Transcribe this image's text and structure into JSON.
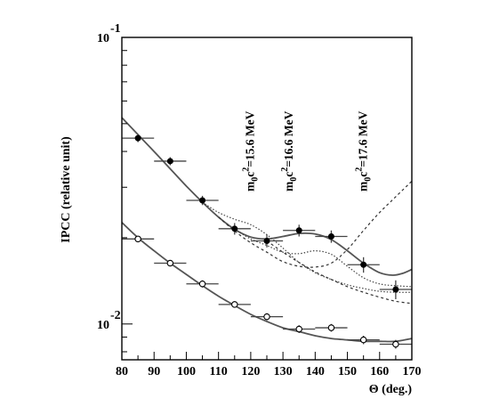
{
  "chart_data": {
    "type": "scatter",
    "xlabel": "Θ (deg.)",
    "ylabel": "IPCC (relative unit)",
    "xlim": [
      80,
      170
    ],
    "ylim": [
      0.0075,
      0.1
    ],
    "yscale": "log",
    "x_ticks": [
      80,
      90,
      100,
      110,
      120,
      130,
      140,
      150,
      160,
      170
    ],
    "y_tick_labels": [
      {
        "value": 0.1,
        "base": "10",
        "exp": "-1"
      },
      {
        "value": 0.01,
        "base": "10",
        "exp": "-2"
      }
    ],
    "annotations": [
      {
        "main": "m",
        "sub": "0",
        "rest": "c",
        "sup": "2",
        "tail": "=15.6 MeV",
        "x": 121
      },
      {
        "main": "m",
        "sub": "0",
        "rest": "c",
        "sup": "2",
        "tail": "=16.6 MeV",
        "x": 133
      },
      {
        "main": "m",
        "sub": "0",
        "rest": "c",
        "sup": "2",
        "tail": "=17.6 MeV",
        "x": 156
      }
    ],
    "series": [
      {
        "marker": "filled",
        "points": [
          {
            "x": 85,
            "y": 0.0445,
            "xerr": 5,
            "yerr": 0.0014
          },
          {
            "x": 95,
            "y": 0.037,
            "xerr": 5,
            "yerr": 0.0012
          },
          {
            "x": 105,
            "y": 0.027,
            "xerr": 5,
            "yerr": 0.001
          },
          {
            "x": 115,
            "y": 0.0215,
            "xerr": 5,
            "yerr": 0.001
          },
          {
            "x": 125,
            "y": 0.0195,
            "xerr": 5,
            "yerr": 0.001
          },
          {
            "x": 135,
            "y": 0.0212,
            "xerr": 5,
            "yerr": 0.001
          },
          {
            "x": 145,
            "y": 0.0202,
            "xerr": 5,
            "yerr": 0.001
          },
          {
            "x": 155,
            "y": 0.0161,
            "xerr": 5,
            "yerr": 0.001
          },
          {
            "x": 165,
            "y": 0.0132,
            "xerr": 5,
            "yerr": 0.001
          }
        ]
      },
      {
        "marker": "open",
        "points": [
          {
            "x": 85,
            "y": 0.0198,
            "xerr": 5,
            "yerr": 0.0005
          },
          {
            "x": 95,
            "y": 0.0163,
            "xerr": 5,
            "yerr": 0.0004
          },
          {
            "x": 105,
            "y": 0.0138,
            "xerr": 5,
            "yerr": 0.0004
          },
          {
            "x": 115,
            "y": 0.0117,
            "xerr": 5,
            "yerr": 0.0003
          },
          {
            "x": 125,
            "y": 0.0106,
            "xerr": 5,
            "yerr": 0.0003
          },
          {
            "x": 135,
            "y": 0.0096,
            "xerr": 5,
            "yerr": 0.0003
          },
          {
            "x": 145,
            "y": 0.0097,
            "xerr": 5,
            "yerr": 0.0003
          },
          {
            "x": 155,
            "y": 0.0088,
            "xerr": 5,
            "yerr": 0.0003
          },
          {
            "x": 165,
            "y": 0.0085,
            "xerr": 5,
            "yerr": 0.0003
          }
        ]
      }
    ],
    "curves": [
      {
        "style": "solid",
        "color": "#555555",
        "points": [
          [
            80,
            0.0525
          ],
          [
            85,
            0.0458
          ],
          [
            90,
            0.04
          ],
          [
            95,
            0.0348
          ],
          [
            100,
            0.0303
          ],
          [
            105,
            0.0266
          ],
          [
            110,
            0.0236
          ],
          [
            115,
            0.0214
          ],
          [
            120,
            0.0201
          ],
          [
            125,
            0.0198
          ],
          [
            130,
            0.0202
          ],
          [
            135,
            0.0207
          ],
          [
            140,
            0.0206
          ],
          [
            145,
            0.0197
          ],
          [
            150,
            0.018
          ],
          [
            155,
            0.0163
          ],
          [
            160,
            0.0151
          ],
          [
            164,
            0.0148
          ],
          [
            167,
            0.015
          ],
          [
            170,
            0.0155
          ]
        ]
      },
      {
        "style": "solid",
        "color": "#555555",
        "points": [
          [
            80,
            0.0226
          ],
          [
            85,
            0.02
          ],
          [
            90,
            0.018
          ],
          [
            95,
            0.0163
          ],
          [
            100,
            0.0149
          ],
          [
            105,
            0.0136
          ],
          [
            110,
            0.0125
          ],
          [
            115,
            0.0116
          ],
          [
            120,
            0.0108
          ],
          [
            125,
            0.0102
          ],
          [
            130,
            0.0097
          ],
          [
            135,
            0.0094
          ],
          [
            140,
            0.0091
          ],
          [
            145,
            0.0089
          ],
          [
            150,
            0.0088
          ],
          [
            155,
            0.0087
          ],
          [
            160,
            0.0087
          ],
          [
            165,
            0.0087
          ],
          [
            170,
            0.0089
          ]
        ]
      },
      {
        "style": "dotted",
        "color": "#444444",
        "points": [
          [
            105,
            0.0266
          ],
          [
            110,
            0.0245
          ],
          [
            115,
            0.0232
          ],
          [
            120,
            0.0222
          ],
          [
            125,
            0.0205
          ],
          [
            130,
            0.0184
          ],
          [
            135,
            0.0164
          ],
          [
            140,
            0.0151
          ],
          [
            145,
            0.0143
          ],
          [
            150,
            0.0137
          ],
          [
            155,
            0.0133
          ],
          [
            160,
            0.013
          ],
          [
            165,
            0.0129
          ],
          [
            170,
            0.0129
          ]
        ]
      },
      {
        "style": "dotted",
        "color": "#444444",
        "points": [
          [
            115,
            0.0214
          ],
          [
            120,
            0.0198
          ],
          [
            125,
            0.0188
          ],
          [
            130,
            0.0178
          ],
          [
            135,
            0.0176
          ],
          [
            140,
            0.018
          ],
          [
            145,
            0.0175
          ],
          [
            150,
            0.0159
          ],
          [
            155,
            0.0145
          ],
          [
            160,
            0.0138
          ],
          [
            165,
            0.0136
          ],
          [
            170,
            0.0135
          ]
        ]
      },
      {
        "style": "dashed",
        "color": "#333333",
        "points": [
          [
            110,
            0.0236
          ],
          [
            115,
            0.0211
          ],
          [
            120,
            0.0192
          ],
          [
            125,
            0.0178
          ],
          [
            130,
            0.0165
          ],
          [
            135,
            0.0159
          ],
          [
            140,
            0.0158
          ],
          [
            145,
            0.0163
          ],
          [
            150,
            0.0182
          ],
          [
            155,
            0.0212
          ],
          [
            160,
            0.0245
          ],
          [
            165,
            0.0278
          ],
          [
            170,
            0.0315
          ]
        ]
      },
      {
        "style": "dashed",
        "color": "#333333",
        "points": [
          [
            125,
            0.0195
          ],
          [
            130,
            0.0178
          ],
          [
            135,
            0.0164
          ],
          [
            140,
            0.0152
          ],
          [
            145,
            0.0143
          ],
          [
            150,
            0.0135
          ],
          [
            155,
            0.0129
          ],
          [
            160,
            0.0124
          ],
          [
            165,
            0.012
          ],
          [
            170,
            0.0118
          ]
        ]
      }
    ]
  }
}
